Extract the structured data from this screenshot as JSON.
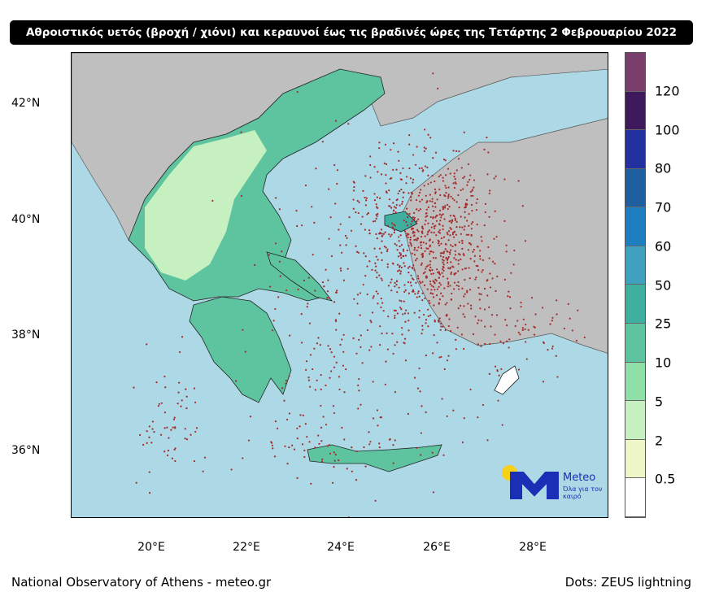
{
  "title": "Αθροιστικός υετός (βροχή / χιόνι) και κεραυνοί έως τις βραδινές ώρες της Τετάρτης 2 Φεβρουαρίου 2022",
  "lat_labels": [
    "42°N",
    "40°N",
    "38°N",
    "36°N"
  ],
  "lon_labels": [
    "20°E",
    "22°E",
    "24°E",
    "26°E",
    "28°E"
  ],
  "colorbar": {
    "labels": [
      "120",
      "100",
      "80",
      "70",
      "60",
      "50",
      "25",
      "10",
      "5",
      "2",
      "0.5"
    ],
    "colors_top_to_bottom": [
      "#7b3f6e",
      "#3e1a5c",
      "#2230a0",
      "#1f5fa0",
      "#1e7fc0",
      "#3fa0c0",
      "#3fb0a0",
      "#5ec4a0",
      "#8fe0a8",
      "#c6f0c0",
      "#eef6c8",
      "#ffffff"
    ]
  },
  "logo": {
    "name": "Meteo",
    "tagline": "Όλα για τον καιρό",
    "sun_color": "#f7d117",
    "brand_color": "#1a2fb5"
  },
  "footer": {
    "left": "National Observatory of Athens - meteo.gr",
    "right": "Dots: ZEUS lightning"
  },
  "colors": {
    "sea": "#add8e6",
    "land": "#bfbfbf",
    "lightning": "#a52a2a"
  }
}
